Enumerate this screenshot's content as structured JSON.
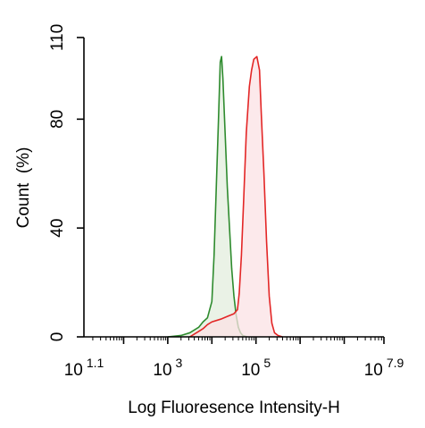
{
  "chart_data": {
    "type": "area",
    "xlabel": "Log Fluoresence Intensity-H",
    "ylabel": "Count  (%)",
    "xscale": "log",
    "xlim_log10": [
      1.1,
      7.9
    ],
    "ylim": [
      0,
      110
    ],
    "grid": false,
    "legend": "none",
    "x_ticks": [
      {
        "base": "10",
        "exp": "1.1"
      },
      {
        "base": "10",
        "exp": "3"
      },
      {
        "base": "10",
        "exp": "5"
      },
      {
        "base": "10",
        "exp": "7.9"
      }
    ],
    "y_ticks": [
      "0",
      "40",
      "80",
      "110"
    ],
    "series": [
      {
        "color": "#2e8b2e",
        "fill": "#e3eedd",
        "points_log10x_y": [
          [
            3.0,
            0
          ],
          [
            3.3,
            0.5
          ],
          [
            3.5,
            1.5
          ],
          [
            3.7,
            3.5
          ],
          [
            3.8,
            5.5
          ],
          [
            3.9,
            7
          ],
          [
            4.0,
            13
          ],
          [
            4.05,
            30
          ],
          [
            4.1,
            55
          ],
          [
            4.15,
            80
          ],
          [
            4.19,
            101
          ],
          [
            4.22,
            103
          ],
          [
            4.25,
            95
          ],
          [
            4.3,
            75
          ],
          [
            4.35,
            55
          ],
          [
            4.4,
            40
          ],
          [
            4.45,
            25
          ],
          [
            4.5,
            15
          ],
          [
            4.55,
            8
          ],
          [
            4.6,
            3.5
          ],
          [
            4.65,
            1.5
          ],
          [
            4.7,
            0.5
          ],
          [
            4.8,
            0
          ]
        ]
      },
      {
        "color": "#e32626",
        "fill": "#fbe1e4",
        "points_log10x_y": [
          [
            3.5,
            0
          ],
          [
            3.6,
            1
          ],
          [
            3.7,
            2
          ],
          [
            3.8,
            3
          ],
          [
            3.9,
            4.5
          ],
          [
            4.0,
            5.5
          ],
          [
            4.2,
            6.5
          ],
          [
            4.35,
            7.5
          ],
          [
            4.5,
            8.5
          ],
          [
            4.58,
            10
          ],
          [
            4.62,
            16
          ],
          [
            4.67,
            30
          ],
          [
            4.72,
            50
          ],
          [
            4.78,
            75
          ],
          [
            4.85,
            92
          ],
          [
            4.9,
            98
          ],
          [
            4.95,
            102
          ],
          [
            5.02,
            103
          ],
          [
            5.08,
            98
          ],
          [
            5.12,
            82
          ],
          [
            5.18,
            60
          ],
          [
            5.24,
            35
          ],
          [
            5.3,
            15
          ],
          [
            5.36,
            5
          ],
          [
            5.42,
            1.5
          ],
          [
            5.5,
            0.5
          ],
          [
            5.6,
            0
          ]
        ]
      }
    ]
  }
}
